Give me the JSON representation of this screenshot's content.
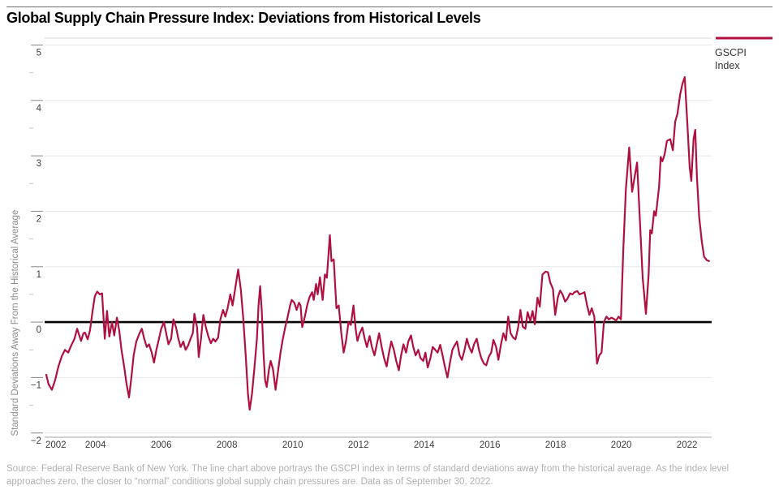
{
  "header": {
    "title": "Global Supply Chain Pressure Index: Deviations from Historical Levels"
  },
  "legend": {
    "label_line1": "GSCPI",
    "label_line2": "Index"
  },
  "source_note": {
    "line1": "Source: Federal Reserve Bank of New York. The line chart above portrays the GSCPI index in terms of standard deviations away from the historical average. As the index level",
    "line2": "approaches zero, the closer to “normal” conditions global supply chain pressures are. Data as of September 30, 2022."
  },
  "colors": {
    "accent": "#b0103f",
    "gridline": "#e7e7e7",
    "zero_line": "#000000",
    "axis_line": "#a6a6a6",
    "tick": "#8a8a8a",
    "minor_tick": "#c4c4c4",
    "axis_text": "#3d3d3d",
    "ylabel_text": "#8c8c8c",
    "rule_under_title": "#d8d8d8",
    "source_text": "#b0b0b0"
  },
  "chart_data": {
    "type": "line",
    "title": "Global Supply Chain Pressure Index: Deviations from Historical Levels",
    "xlabel": "",
    "ylabel": "Standard Deviations Away From the Historical Average",
    "ylim": [
      -2,
      5
    ],
    "xlim": [
      2002.5,
      2022.75
    ],
    "yticks": [
      5,
      4,
      3,
      2,
      1,
      0,
      -1,
      -2
    ],
    "xticks": [
      2002,
      2004,
      2006,
      2008,
      2010,
      2012,
      2014,
      2016,
      2018,
      2020,
      2022
    ],
    "grid": "horizontal",
    "legend_position": "top-right",
    "zero_reference_line": 0,
    "series": [
      {
        "name": "GSCPI Index",
        "color": "#b0103f",
        "points": [
          [
            2002.5,
            -0.95
          ],
          [
            2002.57,
            -1.12
          ],
          [
            2002.67,
            -1.22
          ],
          [
            2002.77,
            -1.05
          ],
          [
            2002.87,
            -0.8
          ],
          [
            2002.97,
            -0.62
          ],
          [
            2003.07,
            -0.5
          ],
          [
            2003.17,
            -0.55
          ],
          [
            2003.26,
            -0.42
          ],
          [
            2003.36,
            -0.3
          ],
          [
            2003.44,
            -0.12
          ],
          [
            2003.51,
            -0.25
          ],
          [
            2003.56,
            -0.34
          ],
          [
            2003.63,
            -0.2
          ],
          [
            2003.68,
            -0.19
          ],
          [
            2003.76,
            -0.31
          ],
          [
            2003.83,
            -0.15
          ],
          [
            2003.91,
            0.2
          ],
          [
            2003.98,
            0.47
          ],
          [
            2004.05,
            0.55
          ],
          [
            2004.13,
            0.5
          ],
          [
            2004.2,
            0.52
          ],
          [
            2004.28,
            -0.3
          ],
          [
            2004.35,
            0.2
          ],
          [
            2004.42,
            -0.26
          ],
          [
            2004.5,
            0.0
          ],
          [
            2004.57,
            -0.24
          ],
          [
            2004.65,
            0.08
          ],
          [
            2004.72,
            -0.15
          ],
          [
            2004.79,
            -0.5
          ],
          [
            2004.87,
            -0.8
          ],
          [
            2004.94,
            -1.1
          ],
          [
            2005.02,
            -1.36
          ],
          [
            2005.09,
            -1.0
          ],
          [
            2005.16,
            -0.6
          ],
          [
            2005.24,
            -0.35
          ],
          [
            2005.34,
            -0.2
          ],
          [
            2005.41,
            -0.12
          ],
          [
            2005.48,
            -0.3
          ],
          [
            2005.56,
            -0.45
          ],
          [
            2005.63,
            -0.4
          ],
          [
            2005.71,
            -0.55
          ],
          [
            2005.78,
            -0.73
          ],
          [
            2005.85,
            -0.5
          ],
          [
            2005.93,
            -0.3
          ],
          [
            2006.0,
            -0.12
          ],
          [
            2006.08,
            0.0
          ],
          [
            2006.15,
            -0.2
          ],
          [
            2006.22,
            -0.4
          ],
          [
            2006.3,
            -0.3
          ],
          [
            2006.37,
            0.05
          ],
          [
            2006.45,
            -0.1
          ],
          [
            2006.52,
            -0.3
          ],
          [
            2006.59,
            -0.45
          ],
          [
            2006.67,
            -0.35
          ],
          [
            2006.74,
            -0.5
          ],
          [
            2006.82,
            -0.42
          ],
          [
            2006.89,
            -0.3
          ],
          [
            2006.96,
            -0.2
          ],
          [
            2007.01,
            0.15
          ],
          [
            2007.09,
            -0.1
          ],
          [
            2007.14,
            -0.63
          ],
          [
            2007.21,
            -0.3
          ],
          [
            2007.28,
            0.13
          ],
          [
            2007.36,
            -0.1
          ],
          [
            2007.43,
            -0.25
          ],
          [
            2007.51,
            -0.38
          ],
          [
            2007.58,
            -0.3
          ],
          [
            2007.65,
            -0.35
          ],
          [
            2007.73,
            -0.28
          ],
          [
            2007.8,
            0.05
          ],
          [
            2007.88,
            0.22
          ],
          [
            2007.95,
            0.1
          ],
          [
            2008.02,
            0.25
          ],
          [
            2008.1,
            0.5
          ],
          [
            2008.17,
            0.3
          ],
          [
            2008.25,
            0.6
          ],
          [
            2008.34,
            0.95
          ],
          [
            2008.42,
            0.6
          ],
          [
            2008.49,
            0.1
          ],
          [
            2008.57,
            -0.6
          ],
          [
            2008.64,
            -1.3
          ],
          [
            2008.69,
            -1.58
          ],
          [
            2008.76,
            -1.3
          ],
          [
            2008.84,
            -0.8
          ],
          [
            2008.91,
            -0.3
          ],
          [
            2008.96,
            0.3
          ],
          [
            2009.01,
            0.65
          ],
          [
            2009.06,
            0.2
          ],
          [
            2009.11,
            -0.55
          ],
          [
            2009.16,
            -1.05
          ],
          [
            2009.21,
            -1.17
          ],
          [
            2009.28,
            -0.85
          ],
          [
            2009.33,
            -0.7
          ],
          [
            2009.4,
            -0.85
          ],
          [
            2009.48,
            -1.22
          ],
          [
            2009.55,
            -0.9
          ],
          [
            2009.63,
            -0.55
          ],
          [
            2009.7,
            -0.3
          ],
          [
            2009.77,
            -0.1
          ],
          [
            2009.85,
            0.1
          ],
          [
            2009.92,
            0.3
          ],
          [
            2009.97,
            0.4
          ],
          [
            2010.05,
            0.35
          ],
          [
            2010.12,
            0.22
          ],
          [
            2010.19,
            0.35
          ],
          [
            2010.24,
            0.3
          ],
          [
            2010.29,
            -0.09
          ],
          [
            2010.37,
            0.1
          ],
          [
            2010.44,
            0.3
          ],
          [
            2010.51,
            0.45
          ],
          [
            2010.59,
            0.54
          ],
          [
            2010.64,
            0.4
          ],
          [
            2010.71,
            0.69
          ],
          [
            2010.76,
            0.5
          ],
          [
            2010.83,
            0.81
          ],
          [
            2010.91,
            0.4
          ],
          [
            2010.98,
            0.86
          ],
          [
            2011.04,
            0.8
          ],
          [
            2011.13,
            1.57
          ],
          [
            2011.18,
            1.1
          ],
          [
            2011.25,
            1.13
          ],
          [
            2011.33,
            0.25
          ],
          [
            2011.4,
            0.3
          ],
          [
            2011.48,
            -0.2
          ],
          [
            2011.55,
            -0.55
          ],
          [
            2011.62,
            -0.35
          ],
          [
            2011.7,
            0.0
          ],
          [
            2011.77,
            -0.05
          ],
          [
            2011.85,
            0.3
          ],
          [
            2011.92,
            -0.15
          ],
          [
            2011.97,
            -0.34
          ],
          [
            2012.04,
            -0.2
          ],
          [
            2012.12,
            -0.1
          ],
          [
            2012.19,
            -0.3
          ],
          [
            2012.26,
            -0.45
          ],
          [
            2012.34,
            -0.25
          ],
          [
            2012.41,
            -0.45
          ],
          [
            2012.49,
            -0.6
          ],
          [
            2012.56,
            -0.4
          ],
          [
            2012.63,
            -0.2
          ],
          [
            2012.71,
            -0.45
          ],
          [
            2012.78,
            -0.65
          ],
          [
            2012.86,
            -0.8
          ],
          [
            2012.93,
            -0.55
          ],
          [
            2013.0,
            -0.35
          ],
          [
            2013.08,
            -0.5
          ],
          [
            2013.15,
            -0.7
          ],
          [
            2013.23,
            -0.87
          ],
          [
            2013.3,
            -0.6
          ],
          [
            2013.37,
            -0.4
          ],
          [
            2013.45,
            -0.55
          ],
          [
            2013.52,
            -0.35
          ],
          [
            2013.6,
            -0.24
          ],
          [
            2013.67,
            -0.45
          ],
          [
            2013.74,
            -0.6
          ],
          [
            2013.82,
            -0.5
          ],
          [
            2013.89,
            -0.65
          ],
          [
            2013.97,
            -0.7
          ],
          [
            2014.04,
            -0.55
          ],
          [
            2014.11,
            -0.82
          ],
          [
            2014.19,
            -0.65
          ],
          [
            2014.26,
            -0.45
          ],
          [
            2014.34,
            -0.5
          ],
          [
            2014.41,
            -0.55
          ],
          [
            2014.49,
            -0.41
          ],
          [
            2014.56,
            -0.6
          ],
          [
            2014.63,
            -0.8
          ],
          [
            2014.71,
            -1.0
          ],
          [
            2014.78,
            -0.75
          ],
          [
            2014.86,
            -0.5
          ],
          [
            2014.93,
            -0.42
          ],
          [
            2015.0,
            -0.35
          ],
          [
            2015.08,
            -0.6
          ],
          [
            2015.15,
            -0.68
          ],
          [
            2015.23,
            -0.5
          ],
          [
            2015.3,
            -0.3
          ],
          [
            2015.37,
            -0.45
          ],
          [
            2015.45,
            -0.55
          ],
          [
            2015.52,
            -0.4
          ],
          [
            2015.6,
            -0.3
          ],
          [
            2015.67,
            -0.5
          ],
          [
            2015.74,
            -0.65
          ],
          [
            2015.82,
            -0.75
          ],
          [
            2015.89,
            -0.78
          ],
          [
            2015.97,
            -0.62
          ],
          [
            2016.04,
            -0.55
          ],
          [
            2016.11,
            -0.32
          ],
          [
            2016.19,
            -0.45
          ],
          [
            2016.26,
            -0.68
          ],
          [
            2016.34,
            -0.4
          ],
          [
            2016.41,
            -0.2
          ],
          [
            2016.49,
            -0.33
          ],
          [
            2016.56,
            0.1
          ],
          [
            2016.63,
            -0.2
          ],
          [
            2016.71,
            -0.28
          ],
          [
            2016.78,
            -0.31
          ],
          [
            2016.86,
            -0.1
          ],
          [
            2016.93,
            0.22
          ],
          [
            2017.0,
            -0.08
          ],
          [
            2017.08,
            -0.12
          ],
          [
            2017.15,
            0.18
          ],
          [
            2017.23,
            0.02
          ],
          [
            2017.3,
            0.2
          ],
          [
            2017.37,
            -0.04
          ],
          [
            2017.45,
            0.44
          ],
          [
            2017.52,
            0.28
          ],
          [
            2017.6,
            0.86
          ],
          [
            2017.7,
            0.91
          ],
          [
            2017.77,
            0.9
          ],
          [
            2017.84,
            0.71
          ],
          [
            2017.92,
            0.6
          ],
          [
            2017.99,
            0.13
          ],
          [
            2018.07,
            0.45
          ],
          [
            2018.14,
            0.57
          ],
          [
            2018.21,
            0.5
          ],
          [
            2018.29,
            0.37
          ],
          [
            2018.36,
            0.42
          ],
          [
            2018.44,
            0.52
          ],
          [
            2018.51,
            0.5
          ],
          [
            2018.58,
            0.54
          ],
          [
            2018.66,
            0.56
          ],
          [
            2018.73,
            0.5
          ],
          [
            2018.81,
            0.52
          ],
          [
            2018.88,
            0.54
          ],
          [
            2018.96,
            0.3
          ],
          [
            2019.03,
            0.13
          ],
          [
            2019.1,
            0.25
          ],
          [
            2019.18,
            0.1
          ],
          [
            2019.26,
            -0.75
          ],
          [
            2019.33,
            -0.6
          ],
          [
            2019.4,
            -0.55
          ],
          [
            2019.47,
            0.0
          ],
          [
            2019.55,
            0.1
          ],
          [
            2019.62,
            0.05
          ],
          [
            2019.7,
            0.08
          ],
          [
            2019.77,
            0.06
          ],
          [
            2019.84,
            0.03
          ],
          [
            2019.92,
            0.1
          ],
          [
            2019.99,
            0.05
          ],
          [
            2020.06,
            1.3
          ],
          [
            2020.14,
            2.4
          ],
          [
            2020.24,
            3.15
          ],
          [
            2020.33,
            2.35
          ],
          [
            2020.48,
            2.88
          ],
          [
            2020.58,
            1.67
          ],
          [
            2020.65,
            0.8
          ],
          [
            2020.75,
            0.15
          ],
          [
            2020.83,
            0.85
          ],
          [
            2020.88,
            1.66
          ],
          [
            2020.93,
            1.6
          ],
          [
            2021.0,
            2.0
          ],
          [
            2021.05,
            1.92
          ],
          [
            2021.15,
            2.44
          ],
          [
            2021.2,
            2.98
          ],
          [
            2021.25,
            2.9
          ],
          [
            2021.32,
            3.03
          ],
          [
            2021.39,
            3.27
          ],
          [
            2021.49,
            3.3
          ],
          [
            2021.57,
            3.1
          ],
          [
            2021.64,
            3.62
          ],
          [
            2021.71,
            3.76
          ],
          [
            2021.79,
            4.1
          ],
          [
            2021.86,
            4.3
          ],
          [
            2021.93,
            4.42
          ],
          [
            2022.01,
            3.6
          ],
          [
            2022.08,
            2.8
          ],
          [
            2022.13,
            2.55
          ],
          [
            2022.2,
            3.3
          ],
          [
            2022.25,
            3.47
          ],
          [
            2022.3,
            2.64
          ],
          [
            2022.37,
            1.9
          ],
          [
            2022.45,
            1.45
          ],
          [
            2022.52,
            1.18
          ],
          [
            2022.6,
            1.12
          ],
          [
            2022.67,
            1.1
          ]
        ]
      }
    ]
  }
}
